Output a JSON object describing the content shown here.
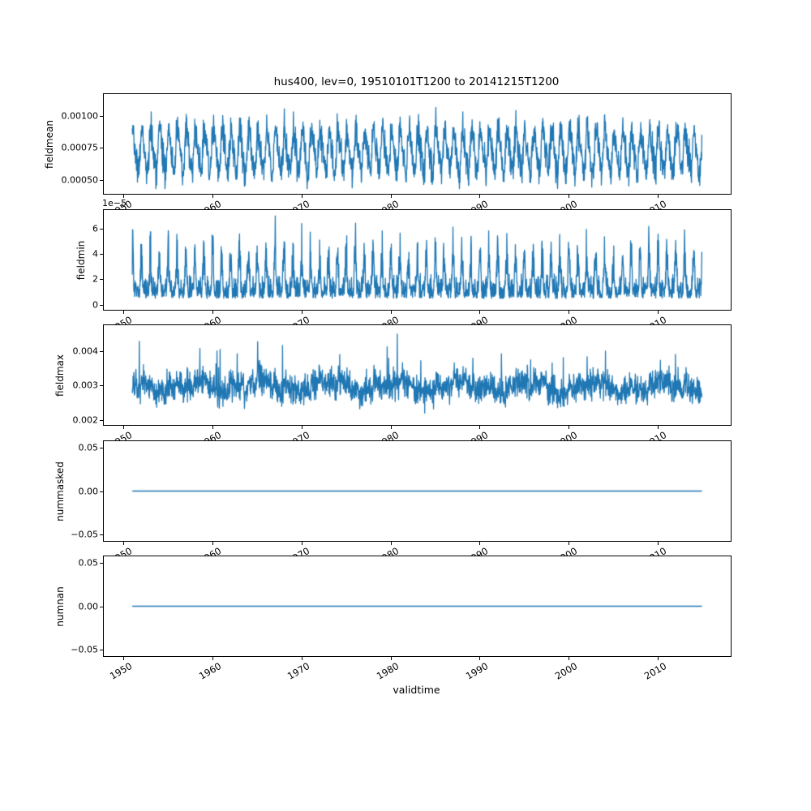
{
  "title": "hus400, lev=0, 19510101T1200 to 20141215T1200",
  "xlabel": "validtime",
  "line_color": "#1f77b4",
  "x_axis": {
    "label": "validtime",
    "lim": [
      1947.8,
      2018.2
    ],
    "ticks": [
      {
        "v": 1950,
        "label": "1950"
      },
      {
        "v": 1960,
        "label": "1960"
      },
      {
        "v": 1970,
        "label": "1970"
      },
      {
        "v": 1980,
        "label": "1980"
      },
      {
        "v": 1990,
        "label": "1990"
      },
      {
        "v": 2000,
        "label": "2000"
      },
      {
        "v": 2010,
        "label": "2010"
      }
    ]
  },
  "chart_data": [
    {
      "type": "line",
      "name": "fieldmean",
      "ylabel": "fieldmean",
      "ylim": [
        0.00039,
        0.001168
      ],
      "yticks": [
        {
          "v": 0.0005,
          "label": "0.00050"
        },
        {
          "v": 0.00075,
          "label": "0.00075"
        },
        {
          "v": 0.001,
          "label": "0.00100"
        }
      ],
      "series": {
        "kind": "noisy_seasonal",
        "t0": 1951.0,
        "t1": 2014.96,
        "n": 2200,
        "base": 0.00072,
        "annual": 0.000155,
        "phase": 0.1,
        "semi": 4e-05,
        "noise": 6.5e-05,
        "clip": [
          0.00043,
          0.00114
        ]
      }
    },
    {
      "type": "line",
      "name": "fieldmin",
      "ylabel": "fieldmin",
      "offset_text": "1e−5",
      "ylim": [
        -4e-06,
        7.45e-05
      ],
      "yticks": [
        {
          "v": 0,
          "label": "0"
        },
        {
          "v": 2e-05,
          "label": "2"
        },
        {
          "v": 4e-05,
          "label": "4"
        },
        {
          "v": 6e-05,
          "label": "6"
        }
      ],
      "series": {
        "kind": "spiky_seasonal",
        "t0": 1951.0,
        "t1": 2014.96,
        "n": 2200,
        "scale": 1e-05,
        "base": 0.5,
        "bnoise": 0.75,
        "phase": 0.22,
        "sharp": 2.5,
        "peak_min": 1.2,
        "peak_max": 4.8,
        "clip": [
          8e-07,
          7.2e-05
        ]
      }
    },
    {
      "type": "line",
      "name": "fieldmax",
      "ylabel": "fieldmax",
      "ylim": [
        0.00185,
        0.00475
      ],
      "yticks": [
        {
          "v": 0.002,
          "label": "0.002"
        },
        {
          "v": 0.003,
          "label": "0.003"
        },
        {
          "v": 0.004,
          "label": "0.004"
        }
      ],
      "series": {
        "kind": "noisy_slow",
        "t0": 1951.0,
        "t1": 2014.96,
        "n": 2200,
        "base": 0.00296,
        "slow1": 0.00013,
        "p1": 7.5,
        "slow2": 9e-05,
        "p2": 3.2,
        "annual": 9e-05,
        "noise": 0.00021,
        "spike_p": 0.015,
        "spike": 0.0008,
        "clip": [
          0.00206,
          0.00468
        ]
      }
    },
    {
      "type": "line",
      "name": "nummasked",
      "ylabel": "nummasked",
      "ylim": [
        -0.0575,
        0.0575
      ],
      "yticks": [
        {
          "v": -0.05,
          "label": "−0.05"
        },
        {
          "v": 0,
          "label": "0.00"
        },
        {
          "v": 0.05,
          "label": "0.05"
        }
      ],
      "series": {
        "kind": "constant",
        "t0": 1951.0,
        "t1": 2014.96,
        "n": 2,
        "value": 0
      }
    },
    {
      "type": "line",
      "name": "numnan",
      "ylabel": "numnan",
      "ylim": [
        -0.0575,
        0.0575
      ],
      "yticks": [
        {
          "v": -0.05,
          "label": "−0.05"
        },
        {
          "v": 0,
          "label": "0.00"
        },
        {
          "v": 0.05,
          "label": "0.05"
        }
      ],
      "series": {
        "kind": "constant",
        "t0": 1951.0,
        "t1": 2014.96,
        "n": 2,
        "value": 0
      }
    }
  ]
}
